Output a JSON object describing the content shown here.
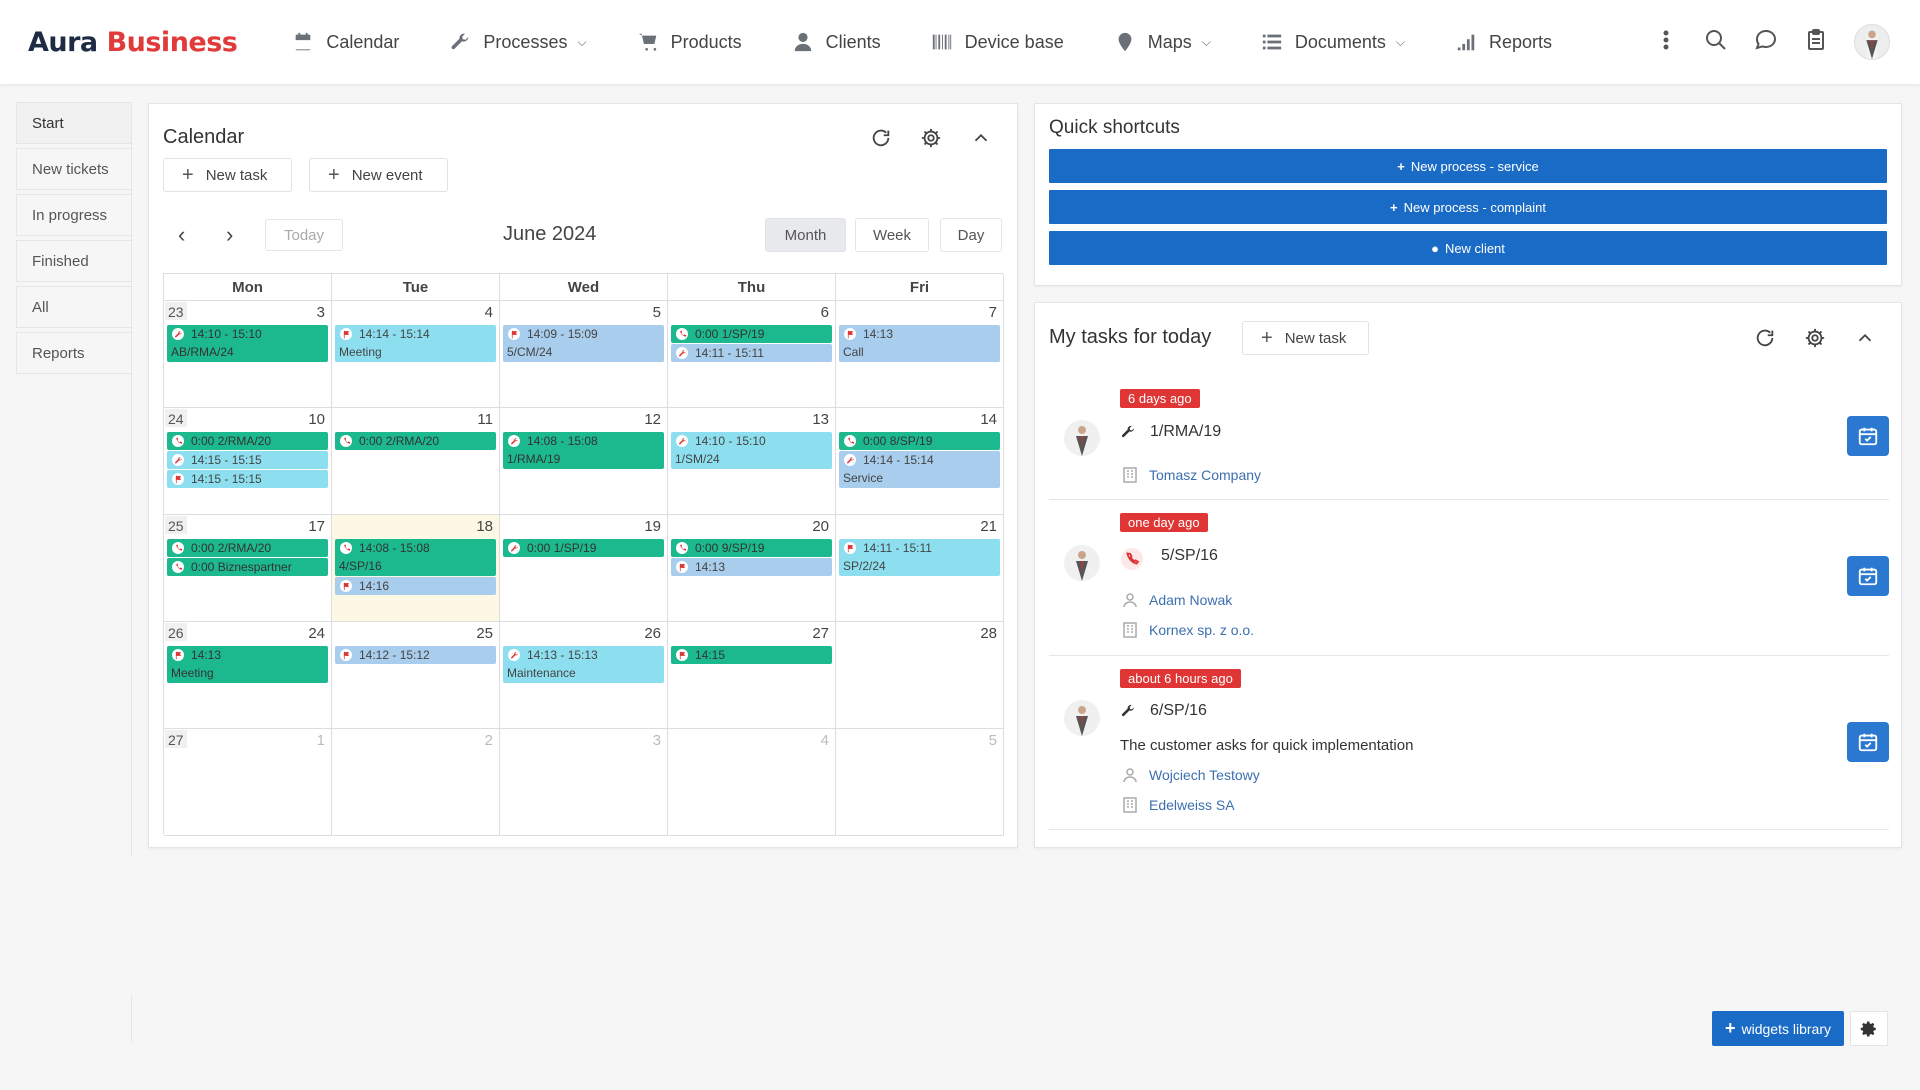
{
  "brand": {
    "part1": "Aura",
    "part2": "Business"
  },
  "nav": [
    {
      "label": "Calendar",
      "icon": "calendar-icon"
    },
    {
      "label": "Processes",
      "icon": "wrench-icon",
      "dropdown": true
    },
    {
      "label": "Products",
      "icon": "cart-icon"
    },
    {
      "label": "Clients",
      "icon": "user-icon"
    },
    {
      "label": "Device base",
      "icon": "barcode-icon"
    },
    {
      "label": "Maps",
      "icon": "map-pin-icon",
      "dropdown": true
    },
    {
      "label": "Documents",
      "icon": "list-icon",
      "dropdown": true
    },
    {
      "label": "Reports",
      "icon": "bar-chart-icon"
    }
  ],
  "sidebar": {
    "items": [
      "Start",
      "New tickets",
      "In progress",
      "Finished",
      "All",
      "Reports"
    ]
  },
  "calendar": {
    "title": "Calendar",
    "new_task": "New task",
    "new_event": "New event",
    "today": "Today",
    "month_title": "June 2024",
    "views": [
      "Month",
      "Week",
      "Day"
    ],
    "active_view": "Month",
    "days": [
      "Mon",
      "Tue",
      "Wed",
      "Thu",
      "Fri"
    ],
    "weeks": [
      {
        "num": "23",
        "dates": [
          "3",
          "4",
          "5",
          "6",
          "7"
        ]
      },
      {
        "num": "24",
        "dates": [
          "10",
          "11",
          "12",
          "13",
          "14"
        ]
      },
      {
        "num": "25",
        "dates": [
          "17",
          "18",
          "19",
          "20",
          "21"
        ]
      },
      {
        "num": "26",
        "dates": [
          "24",
          "25",
          "26",
          "27",
          "28"
        ]
      },
      {
        "num": "27",
        "dates": [
          "1",
          "2",
          "3",
          "4",
          "5"
        ]
      }
    ],
    "events": [
      {
        "w": 0,
        "d": 0,
        "slot": 0,
        "rows": 2,
        "color": "green",
        "icon": "wrench",
        "line1": "14:10 - 15:10",
        "line2": "AB/RMA/24"
      },
      {
        "w": 0,
        "d": 1,
        "slot": 0,
        "rows": 2,
        "color": "cyan",
        "icon": "flag",
        "line1": "14:14 - 15:14",
        "line2": "Meeting"
      },
      {
        "w": 0,
        "d": 2,
        "slot": 0,
        "rows": 2,
        "color": "blue",
        "icon": "flag",
        "line1": "14:09 - 15:09",
        "line2": "5/CM/24"
      },
      {
        "w": 0,
        "d": 3,
        "slot": 0,
        "rows": 1,
        "color": "green",
        "icon": "phone",
        "line1": "0:00 1/SP/19"
      },
      {
        "w": 0,
        "d": 3,
        "slot": 1,
        "rows": 1,
        "color": "blue",
        "icon": "wrench",
        "line1": "14:11 - 15:11"
      },
      {
        "w": 0,
        "d": 4,
        "slot": 0,
        "rows": 2,
        "color": "blue",
        "icon": "flag",
        "line1": "14:13",
        "line2": "Call"
      },
      {
        "w": 1,
        "d": 0,
        "slot": 0,
        "rows": 1,
        "color": "green",
        "icon": "phone",
        "line1": "0:00 2/RMA/20"
      },
      {
        "w": 1,
        "d": 0,
        "slot": 1,
        "rows": 1,
        "color": "cyan",
        "icon": "wrench",
        "line1": "14:15 - 15:15"
      },
      {
        "w": 1,
        "d": 0,
        "slot": 2,
        "rows": 1,
        "color": "cyan",
        "icon": "flag",
        "line1": "14:15 - 15:15"
      },
      {
        "w": 1,
        "d": 1,
        "slot": 0,
        "rows": 1,
        "color": "green",
        "icon": "phone",
        "line1": "0:00 2/RMA/20"
      },
      {
        "w": 1,
        "d": 2,
        "slot": 0,
        "rows": 2,
        "color": "green",
        "icon": "wrench",
        "line1": "14:08 - 15:08",
        "line2": "1/RMA/19"
      },
      {
        "w": 1,
        "d": 3,
        "slot": 0,
        "rows": 2,
        "color": "cyan",
        "icon": "wrench",
        "line1": "14:10 - 15:10",
        "line2": "1/SM/24"
      },
      {
        "w": 1,
        "d": 4,
        "slot": 0,
        "rows": 1,
        "color": "green",
        "icon": "phone",
        "line1": "0:00 8/SP/19"
      },
      {
        "w": 1,
        "d": 4,
        "slot": 1,
        "rows": 2,
        "color": "blue",
        "icon": "wrench",
        "line1": "14:14 - 15:14",
        "line2": "Service"
      },
      {
        "w": 2,
        "d": 0,
        "slot": 0,
        "rows": 1,
        "color": "green",
        "icon": "phone",
        "line1": "0:00 2/RMA/20"
      },
      {
        "w": 2,
        "d": 0,
        "slot": 1,
        "rows": 1,
        "color": "green",
        "icon": "phone",
        "line1": "0:00 Biznespartner"
      },
      {
        "w": 2,
        "d": 1,
        "slot": 0,
        "rows": 2,
        "color": "green",
        "icon": "phone",
        "line1": "14:08 - 15:08",
        "line2": "4/SP/16"
      },
      {
        "w": 2,
        "d": 1,
        "slot": 2,
        "rows": 1,
        "color": "blue",
        "icon": "flag",
        "line1": "14:16"
      },
      {
        "w": 2,
        "d": 2,
        "slot": 0,
        "rows": 1,
        "color": "green",
        "icon": "wrench",
        "line1": "0:00 1/SP/19"
      },
      {
        "w": 2,
        "d": 3,
        "slot": 0,
        "rows": 1,
        "color": "green",
        "icon": "phone",
        "line1": "0:00 9/SP/19"
      },
      {
        "w": 2,
        "d": 3,
        "slot": 1,
        "rows": 1,
        "color": "blue",
        "icon": "flag",
        "line1": "14:13"
      },
      {
        "w": 2,
        "d": 4,
        "slot": 0,
        "rows": 2,
        "color": "cyan",
        "icon": "flag",
        "line1": "14:11 - 15:11",
        "line2": "SP/2/24"
      },
      {
        "w": 3,
        "d": 0,
        "slot": 0,
        "rows": 2,
        "color": "green",
        "icon": "flag",
        "line1": "14:13",
        "line2": "Meeting"
      },
      {
        "w": 3,
        "d": 1,
        "slot": 0,
        "rows": 1,
        "color": "blue",
        "icon": "flag",
        "line1": "14:12 - 15:12"
      },
      {
        "w": 3,
        "d": 2,
        "slot": 0,
        "rows": 2,
        "color": "cyan",
        "icon": "wrench",
        "line1": "14:13 - 15:13",
        "line2": "Maintenance"
      },
      {
        "w": 3,
        "d": 3,
        "slot": 0,
        "rows": 1,
        "color": "green",
        "icon": "flag",
        "line1": "14:15"
      }
    ]
  },
  "shortcuts": {
    "title": "Quick shortcuts",
    "buttons": [
      {
        "label": "New process - service",
        "icon": "plus-icon"
      },
      {
        "label": "New process - complaint",
        "icon": "plus-icon"
      },
      {
        "label": "New client",
        "icon": "user-icon"
      }
    ]
  },
  "tasks": {
    "title": "My tasks for today",
    "new_task": "New task",
    "items": [
      {
        "badge": "6 days ago",
        "icon": "wrench",
        "code": "1/RMA/19",
        "company": "Tomasz Company"
      },
      {
        "badge": "one day ago",
        "icon": "phone",
        "code": "5/SP/16",
        "person": "Adam Nowak",
        "company": "Kornex sp. z o.o."
      },
      {
        "badge": "about 6 hours ago",
        "icon": "wrench",
        "code": "6/SP/16",
        "description": "The customer asks for quick implementation",
        "person": "Wojciech Testowy",
        "company": "Edelweiss SA"
      }
    ]
  },
  "footer": {
    "widgets_library": "widgets library"
  },
  "colors": {
    "accent": "#1a6bc5",
    "brand_red": "#e03a3a",
    "event_green": "#1db98e",
    "event_cyan": "#8ddff0",
    "event_blue": "#a9cdec",
    "badge_red": "#e03535"
  }
}
